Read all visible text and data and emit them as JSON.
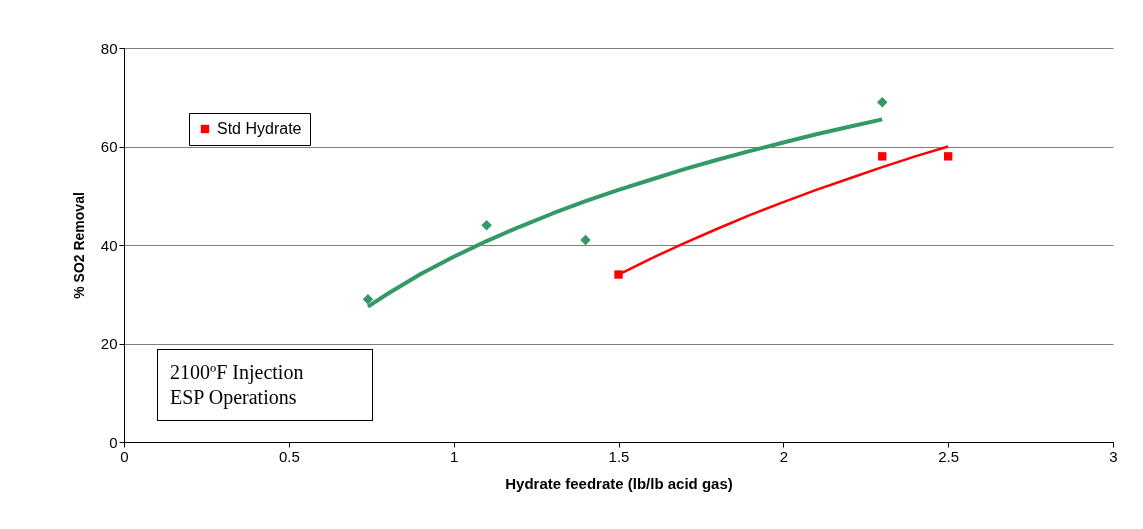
{
  "chart_data": {
    "type": "scatter",
    "xlabel": "Hydrate feedrate (lb/lb acid gas)",
    "ylabel": "% SO2 Removal",
    "xlim": [
      0,
      3
    ],
    "xticks": [
      0,
      0.5,
      1,
      1.5,
      2,
      2.5,
      3
    ],
    "ylim": [
      0,
      80
    ],
    "yticks": [
      0,
      20,
      40,
      60,
      80
    ],
    "grid": "y",
    "legend": "left",
    "annotations": [
      "2100ºF Injection\nESP Operations"
    ],
    "series": [
      {
        "marker": "diamond",
        "color": "#339966",
        "x": [
          0.74,
          1.1,
          1.4,
          2.3
        ],
        "values": [
          29,
          44,
          41,
          69
        ]
      },
      {
        "marker": "square",
        "name": "Std Hydrate",
        "color": "#ff0000",
        "x": [
          1.5,
          2.3,
          2.5
        ],
        "values": [
          34,
          58,
          58
        ]
      },
      {
        "type": "line",
        "marker": "none",
        "color": "#339966",
        "x": [
          0.74,
          0.8,
          0.9,
          1.0,
          1.1,
          1.2,
          1.3,
          1.4,
          1.5,
          1.6,
          1.7,
          1.8,
          1.9,
          2.0,
          2.1,
          2.2,
          2.3
        ],
        "values": [
          27.5,
          30.1,
          34.1,
          37.6,
          40.8,
          43.7,
          46.4,
          48.9,
          51.2,
          53.3,
          55.4,
          57.3,
          59.1,
          60.8,
          62.5,
          64.0,
          65.5
        ]
      },
      {
        "type": "line",
        "marker": "none",
        "color": "#ff0000",
        "x": [
          1.5,
          1.6,
          1.7,
          1.8,
          1.9,
          2.0,
          2.1,
          2.2,
          2.3,
          2.4,
          2.5
        ],
        "values": [
          34.0,
          37.3,
          40.4,
          43.3,
          46.1,
          48.7,
          51.2,
          53.5,
          55.8,
          58.0,
          60.0
        ]
      }
    ]
  }
}
